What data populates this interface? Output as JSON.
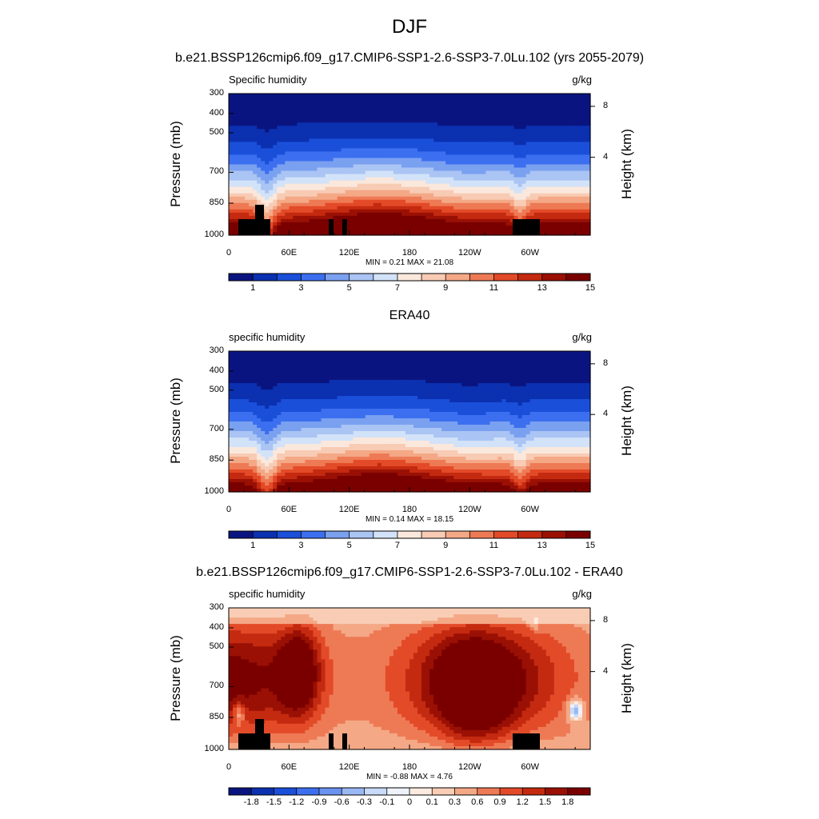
{
  "figure": {
    "title": "DJF",
    "top_title": "b.e21.BSSP126cmip6.f09_g17.CMIP6-SSP1-2.6-SSP3-7.0Lu.102 (yrs 2055-2079)",
    "mid_title": "ERA40",
    "bottom_title": "b.e21.BSSP126cmip6.f09_g17.CMIP6-SSP1-2.6-SSP3-7.0Lu.102 - ERA40"
  },
  "chart_data": [
    {
      "type": "heatmap",
      "left_label": "Specific humidity",
      "units": "g/kg",
      "ylabel": "Pressure (mb)",
      "ylabel_right": "Height (km)",
      "y_ticks": [
        "300",
        "400",
        "500",
        "700",
        "850",
        "1000"
      ],
      "y_ticks_right": [
        "8",
        "4"
      ],
      "x_ticks": [
        "0",
        "60E",
        "120E",
        "180",
        "120W",
        "60W"
      ],
      "min_text": "MIN =   0.21  MAX =  21.08",
      "colorbar_labels": [
        "1",
        "3",
        "5",
        "7",
        "9",
        "11",
        "13",
        "15"
      ],
      "colors": [
        "#0a1480",
        "#0b30b0",
        "#1a4fd9",
        "#3c6ff0",
        "#7aa0f0",
        "#aac4f4",
        "#d2e2f8",
        "#fbe8dc",
        "#f8cbb4",
        "#f4a886",
        "#ee7a55",
        "#e34a28",
        "#c42a10",
        "#9a1004",
        "#7a0000"
      ]
    },
    {
      "type": "heatmap",
      "left_label": "specific humidity",
      "units": "g/kg",
      "ylabel": "Pressure (mb)",
      "ylabel_right": "Height (km)",
      "y_ticks": [
        "300",
        "400",
        "500",
        "700",
        "850",
        "1000"
      ],
      "y_ticks_right": [
        "8",
        "4"
      ],
      "x_ticks": [
        "0",
        "60E",
        "120E",
        "180",
        "120W",
        "60W"
      ],
      "min_text": "MIN =   0.14  MAX =  18.15",
      "colorbar_labels": [
        "1",
        "3",
        "5",
        "7",
        "9",
        "11",
        "13",
        "15"
      ],
      "colors": [
        "#0a1480",
        "#0b30b0",
        "#1a4fd9",
        "#3c6ff0",
        "#7aa0f0",
        "#aac4f4",
        "#d2e2f8",
        "#fbe8dc",
        "#f8cbb4",
        "#f4a886",
        "#ee7a55",
        "#e34a28",
        "#c42a10",
        "#9a1004",
        "#7a0000"
      ]
    },
    {
      "type": "heatmap",
      "left_label": "specific humidity",
      "units": "g/kg",
      "ylabel": "Pressure (mb)",
      "ylabel_right": "Height (km)",
      "y_ticks": [
        "300",
        "400",
        "500",
        "700",
        "850",
        "1000"
      ],
      "y_ticks_right": [
        "8",
        "4"
      ],
      "x_ticks": [
        "0",
        "60E",
        "120E",
        "180",
        "120W",
        "60W"
      ],
      "min_text": "MIN =  -0.88  MAX =   4.76",
      "colorbar_labels": [
        "-1.8",
        "-1.5",
        "-1.2",
        "-0.9",
        "-0.6",
        "-0.3",
        "-0.1",
        "0",
        "0.1",
        "0.3",
        "0.6",
        "0.9",
        "1.2",
        "1.5",
        "1.8"
      ],
      "colors": [
        "#0a1480",
        "#0b30b0",
        "#1a4fd9",
        "#3c6ff0",
        "#6a92f0",
        "#9ab8f4",
        "#c8daf8",
        "#eef3fb",
        "#fdebe0",
        "#f9cdb5",
        "#f4a886",
        "#ee7a55",
        "#e34a28",
        "#c42a10",
        "#9a1004",
        "#7a0000"
      ]
    }
  ]
}
